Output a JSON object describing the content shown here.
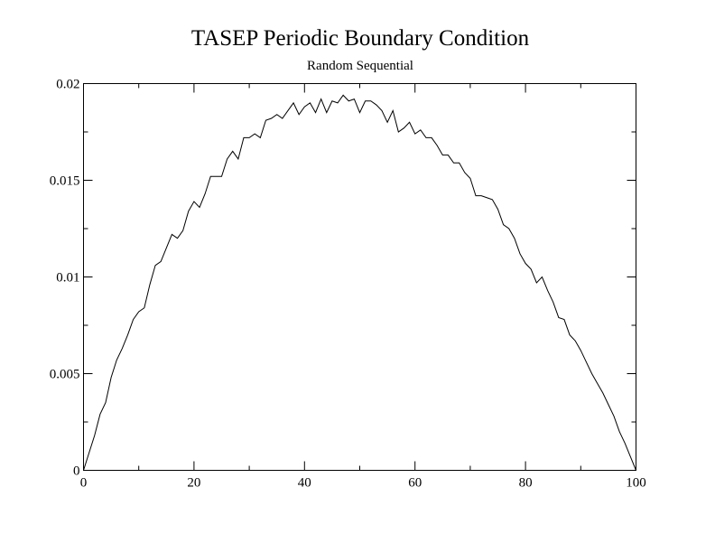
{
  "chart_data": {
    "type": "line",
    "title": "TASEP Periodic Boundary Condition",
    "subtitle": "Random Sequential",
    "xlabel": "",
    "ylabel": "",
    "xlim": [
      0,
      100
    ],
    "ylim": [
      0,
      0.02
    ],
    "x_ticks": [
      0,
      20,
      40,
      60,
      80,
      100
    ],
    "x_tick_labels": [
      "0",
      "20",
      "40",
      "60",
      "80",
      "100"
    ],
    "x_minor_ticks": [
      10,
      30,
      50,
      70,
      90
    ],
    "y_ticks": [
      0,
      0.005,
      0.01,
      0.015,
      0.02
    ],
    "y_tick_labels": [
      "0",
      "0.005",
      "0.01",
      "0.015",
      "0.02"
    ],
    "y_minor_ticks": [
      0.0025,
      0.0075,
      0.0125,
      0.0175
    ],
    "grid": false,
    "legend": "none",
    "series": [
      {
        "x": [
          0,
          1,
          2,
          3,
          4,
          5,
          6,
          7,
          8,
          9,
          10,
          11,
          12,
          13,
          14,
          15,
          16,
          17,
          18,
          19,
          20,
          21,
          22,
          23,
          24,
          25,
          26,
          27,
          28,
          29,
          30,
          31,
          32,
          33,
          34,
          35,
          36,
          37,
          38,
          39,
          40,
          41,
          42,
          43,
          44,
          45,
          46,
          47,
          48,
          49,
          50,
          51,
          52,
          53,
          54,
          55,
          56,
          57,
          58,
          59,
          60,
          61,
          62,
          63,
          64,
          65,
          66,
          67,
          68,
          69,
          70,
          71,
          72,
          73,
          74,
          75,
          76,
          77,
          78,
          79,
          80,
          81,
          82,
          83,
          84,
          85,
          86,
          87,
          88,
          89,
          90,
          91,
          92,
          93,
          94,
          95,
          96,
          97,
          98,
          99,
          100
        ],
        "y": [
          0,
          0.0009,
          0.0018,
          0.0029,
          0.0035,
          0.0048,
          0.0057,
          0.0063,
          0.007,
          0.0078,
          0.0082,
          0.0084,
          0.0096,
          0.0106,
          0.0108,
          0.0115,
          0.0122,
          0.012,
          0.0124,
          0.0134,
          0.0139,
          0.0136,
          0.0143,
          0.0152,
          0.0152,
          0.0152,
          0.0161,
          0.0165,
          0.0161,
          0.0172,
          0.0172,
          0.0174,
          0.0172,
          0.0181,
          0.0182,
          0.0184,
          0.0182,
          0.0186,
          0.019,
          0.0184,
          0.0188,
          0.019,
          0.0185,
          0.0192,
          0.0185,
          0.0191,
          0.019,
          0.0194,
          0.0191,
          0.0192,
          0.0185,
          0.0191,
          0.0191,
          0.0189,
          0.0186,
          0.018,
          0.0186,
          0.0175,
          0.0177,
          0.018,
          0.0174,
          0.0176,
          0.0172,
          0.0172,
          0.0168,
          0.0163,
          0.0163,
          0.0159,
          0.0159,
          0.0154,
          0.0151,
          0.0142,
          0.0142,
          0.0141,
          0.014,
          0.0135,
          0.0127,
          0.0125,
          0.012,
          0.0112,
          0.0107,
          0.0104,
          0.0097,
          0.01,
          0.0093,
          0.0087,
          0.0079,
          0.0078,
          0.007,
          0.0067,
          0.0062,
          0.0056,
          0.005,
          0.0045,
          0.004,
          0.0034,
          0.0028,
          0.002,
          0.0014,
          0.0007,
          0
        ]
      }
    ]
  }
}
